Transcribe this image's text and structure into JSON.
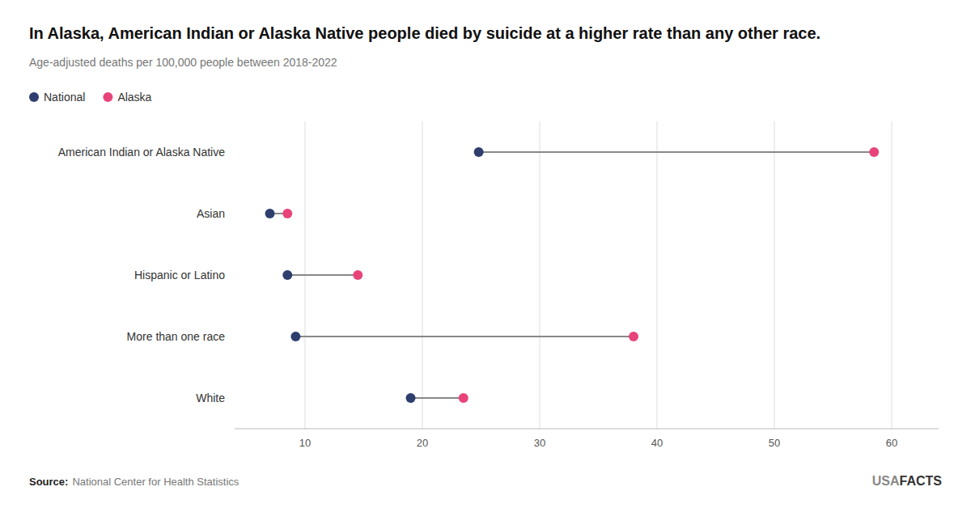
{
  "chart_data": {
    "type": "dumbbell",
    "title": "In Alaska, American Indian or Alaska Native people died by suicide at a higher rate than any other race.",
    "subtitle": "Age-adjusted deaths per 100,000 people between 2018-2022",
    "categories": [
      "American Indian or Alaska Native",
      "Asian",
      "Hispanic or Latino",
      "More than one race",
      "White"
    ],
    "series": [
      {
        "name": "National",
        "color": "#2E3F6E",
        "values": [
          24.8,
          7.0,
          8.5,
          9.2,
          19.0
        ]
      },
      {
        "name": "Alaska",
        "color": "#E8447A",
        "values": [
          58.5,
          8.5,
          14.5,
          38.0,
          23.5
        ]
      }
    ],
    "orientation": "horizontal",
    "xlim": [
      4,
      64
    ],
    "xticks": [
      10,
      20,
      30,
      40,
      50,
      60
    ],
    "grid": true,
    "legend": "top-left",
    "source_label": "Source:",
    "source": "National Center for Health Statistics",
    "brand": [
      "USA",
      "FACTS"
    ]
  }
}
